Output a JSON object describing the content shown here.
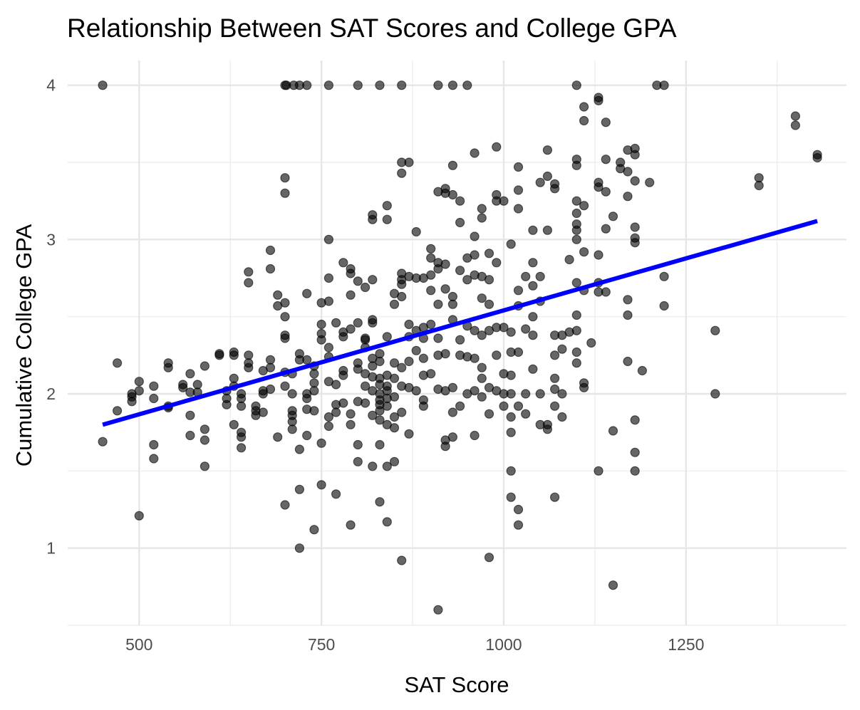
{
  "chart_data": {
    "type": "scatter",
    "title": "Relationship Between SAT Scores and College GPA",
    "xlabel": "SAT Score",
    "ylabel": "Cumulative College GPA",
    "xlim": [
      402,
      1470
    ],
    "ylim": [
      0.5,
      4.16
    ],
    "x_ticks": [
      500,
      750,
      1000,
      1250
    ],
    "y_ticks": [
      1,
      2,
      3,
      4
    ],
    "grid": true,
    "legend": "none",
    "point_color": "#000000",
    "point_opacity": 0.6,
    "trend_line": {
      "color": "#0000ff",
      "x": [
        450,
        1430
      ],
      "y": [
        1.8,
        3.12
      ]
    },
    "points": [
      [
        450,
        4.0
      ],
      [
        700,
        4.0
      ],
      [
        702,
        4.0
      ],
      [
        712,
        4.0
      ],
      [
        720,
        4.0
      ],
      [
        730,
        4.0
      ],
      [
        760,
        4.0
      ],
      [
        800,
        4.0
      ],
      [
        830,
        4.0
      ],
      [
        860,
        4.0
      ],
      [
        910,
        4.0
      ],
      [
        930,
        4.0
      ],
      [
        950,
        4.0
      ],
      [
        1100,
        4.0
      ],
      [
        1210,
        4.0
      ],
      [
        1220,
        4.0
      ],
      [
        450,
        1.69
      ],
      [
        470,
        2.2
      ],
      [
        470,
        1.89
      ],
      [
        490,
        1.95
      ],
      [
        490,
        1.98
      ],
      [
        490,
        2.0
      ],
      [
        500,
        2.08
      ],
      [
        500,
        2.02
      ],
      [
        500,
        1.21
      ],
      [
        520,
        2.05
      ],
      [
        520,
        1.97
      ],
      [
        520,
        1.67
      ],
      [
        520,
        1.58
      ],
      [
        540,
        2.2
      ],
      [
        540,
        2.17
      ],
      [
        540,
        1.92
      ],
      [
        540,
        1.91
      ],
      [
        560,
        2.06
      ],
      [
        560,
        2.04
      ],
      [
        570,
        2.13
      ],
      [
        570,
        2.01
      ],
      [
        570,
        1.86
      ],
      [
        570,
        1.73
      ],
      [
        580,
        2.06
      ],
      [
        580,
        2.01
      ],
      [
        590,
        2.18
      ],
      [
        590,
        1.77
      ],
      [
        590,
        1.7
      ],
      [
        590,
        1.53
      ],
      [
        610,
        2.26
      ],
      [
        610,
        2.25
      ],
      [
        620,
        2.02
      ],
      [
        620,
        1.97
      ],
      [
        620,
        1.93
      ],
      [
        630,
        2.27
      ],
      [
        630,
        2.25
      ],
      [
        630,
        2.1
      ],
      [
        630,
        2.05
      ],
      [
        630,
        1.8
      ],
      [
        640,
        2.0
      ],
      [
        640,
        1.97
      ],
      [
        640,
        1.92
      ],
      [
        640,
        1.75
      ],
      [
        640,
        1.72
      ],
      [
        640,
        1.65
      ],
      [
        650,
        2.79
      ],
      [
        650,
        2.72
      ],
      [
        650,
        2.25
      ],
      [
        650,
        2.2
      ],
      [
        650,
        2.17
      ],
      [
        660,
        1.92
      ],
      [
        660,
        1.89
      ],
      [
        660,
        1.86
      ],
      [
        670,
        2.15
      ],
      [
        670,
        2.02
      ],
      [
        670,
        2.0
      ],
      [
        670,
        1.88
      ],
      [
        680,
        2.93
      ],
      [
        680,
        2.81
      ],
      [
        680,
        2.22
      ],
      [
        680,
        2.17
      ],
      [
        680,
        2.03
      ],
      [
        690,
        2.64
      ],
      [
        690,
        2.57
      ],
      [
        690,
        1.72
      ],
      [
        700,
        3.4
      ],
      [
        700,
        3.3
      ],
      [
        700,
        2.59
      ],
      [
        700,
        2.5
      ],
      [
        700,
        2.38
      ],
      [
        700,
        2.36
      ],
      [
        700,
        2.14
      ],
      [
        700,
        2.05
      ],
      [
        700,
        1.28
      ],
      [
        710,
        2.13
      ],
      [
        710,
        2.0
      ],
      [
        710,
        1.89
      ],
      [
        710,
        1.86
      ],
      [
        710,
        1.82
      ],
      [
        710,
        1.77
      ],
      [
        720,
        2.26
      ],
      [
        720,
        2.22
      ],
      [
        720,
        1.64
      ],
      [
        720,
        1.38
      ],
      [
        720,
        1.0
      ],
      [
        730,
        2.65
      ],
      [
        730,
        2.22
      ],
      [
        730,
        2.0
      ],
      [
        730,
        1.97
      ],
      [
        730,
        1.9
      ],
      [
        730,
        1.73
      ],
      [
        740,
        2.18
      ],
      [
        740,
        2.13
      ],
      [
        740,
        2.07
      ],
      [
        740,
        2.02
      ],
      [
        740,
        1.89
      ],
      [
        740,
        1.12
      ],
      [
        750,
        2.59
      ],
      [
        750,
        2.45
      ],
      [
        750,
        2.39
      ],
      [
        750,
        2.35
      ],
      [
        750,
        1.68
      ],
      [
        750,
        1.41
      ],
      [
        760,
        3.0
      ],
      [
        760,
        2.75
      ],
      [
        760,
        2.6
      ],
      [
        760,
        2.3
      ],
      [
        760,
        2.24
      ],
      [
        760,
        2.08
      ],
      [
        760,
        1.85
      ],
      [
        760,
        1.79
      ],
      [
        770,
        2.46
      ],
      [
        770,
        2.06
      ],
      [
        770,
        1.93
      ],
      [
        770,
        1.88
      ],
      [
        770,
        1.35
      ],
      [
        780,
        2.85
      ],
      [
        780,
        2.4
      ],
      [
        780,
        2.37
      ],
      [
        780,
        2.15
      ],
      [
        780,
        2.12
      ],
      [
        780,
        1.94
      ],
      [
        790,
        2.81
      ],
      [
        790,
        2.78
      ],
      [
        790,
        2.64
      ],
      [
        790,
        2.42
      ],
      [
        790,
        1.87
      ],
      [
        790,
        1.8
      ],
      [
        790,
        1.15
      ],
      [
        800,
        2.73
      ],
      [
        800,
        2.46
      ],
      [
        800,
        2.2
      ],
      [
        800,
        2.16
      ],
      [
        800,
        1.95
      ],
      [
        800,
        1.67
      ],
      [
        800,
        1.56
      ],
      [
        810,
        2.69
      ],
      [
        810,
        2.36
      ],
      [
        810,
        2.35
      ],
      [
        810,
        2.3
      ],
      [
        810,
        2.13
      ],
      [
        810,
        2.05
      ],
      [
        810,
        1.94
      ],
      [
        820,
        3.16
      ],
      [
        820,
        3.13
      ],
      [
        820,
        2.74
      ],
      [
        820,
        2.48
      ],
      [
        820,
        2.46
      ],
      [
        820,
        2.23
      ],
      [
        820,
        2.18
      ],
      [
        820,
        2.11
      ],
      [
        820,
        2.02
      ],
      [
        820,
        1.86
      ],
      [
        820,
        1.53
      ],
      [
        830,
        2.26
      ],
      [
        830,
        2.21
      ],
      [
        830,
        2.1
      ],
      [
        830,
        2.06
      ],
      [
        830,
        2.0
      ],
      [
        830,
        1.96
      ],
      [
        830,
        1.93
      ],
      [
        830,
        1.89
      ],
      [
        830,
        1.83
      ],
      [
        830,
        1.67
      ],
      [
        830,
        1.3
      ],
      [
        840,
        3.22
      ],
      [
        840,
        3.13
      ],
      [
        840,
        2.37
      ],
      [
        840,
        2.12
      ],
      [
        840,
        2.05
      ],
      [
        840,
        2.02
      ],
      [
        840,
        1.97
      ],
      [
        840,
        1.92
      ],
      [
        840,
        1.8
      ],
      [
        840,
        1.53
      ],
      [
        840,
        1.17
      ],
      [
        850,
        2.65
      ],
      [
        850,
        2.58
      ],
      [
        850,
        2.2
      ],
      [
        850,
        2.1
      ],
      [
        850,
        1.98
      ],
      [
        850,
        1.85
      ],
      [
        850,
        1.78
      ],
      [
        850,
        1.56
      ],
      [
        860,
        3.5
      ],
      [
        860,
        3.43
      ],
      [
        860,
        2.78
      ],
      [
        860,
        2.74
      ],
      [
        860,
        2.71
      ],
      [
        860,
        2.63
      ],
      [
        860,
        2.17
      ],
      [
        860,
        2.05
      ],
      [
        860,
        1.88
      ],
      [
        860,
        0.92
      ],
      [
        870,
        3.5
      ],
      [
        870,
        2.76
      ],
      [
        870,
        2.45
      ],
      [
        870,
        2.37
      ],
      [
        870,
        2.21
      ],
      [
        870,
        2.04
      ],
      [
        870,
        1.74
      ],
      [
        880,
        3.05
      ],
      [
        880,
        2.75
      ],
      [
        880,
        2.41
      ],
      [
        880,
        2.28
      ],
      [
        880,
        2.02
      ],
      [
        890,
        2.75
      ],
      [
        890,
        2.43
      ],
      [
        890,
        2.36
      ],
      [
        890,
        2.23
      ],
      [
        890,
        2.12
      ],
      [
        890,
        1.96
      ],
      [
        890,
        1.92
      ],
      [
        900,
        2.94
      ],
      [
        900,
        2.88
      ],
      [
        900,
        2.77
      ],
      [
        900,
        2.67
      ],
      [
        900,
        2.45
      ],
      [
        900,
        2.13
      ],
      [
        910,
        3.31
      ],
      [
        910,
        2.85
      ],
      [
        910,
        2.81
      ],
      [
        910,
        2.58
      ],
      [
        910,
        2.36
      ],
      [
        910,
        2.25
      ],
      [
        910,
        2.03
      ],
      [
        910,
        0.6
      ],
      [
        920,
        3.33
      ],
      [
        920,
        3.3
      ],
      [
        920,
        2.84
      ],
      [
        920,
        2.68
      ],
      [
        920,
        2.26
      ],
      [
        920,
        2.02
      ],
      [
        920,
        1.7
      ],
      [
        920,
        1.66
      ],
      [
        930,
        3.48
      ],
      [
        930,
        3.29
      ],
      [
        930,
        2.63
      ],
      [
        930,
        2.58
      ],
      [
        930,
        2.48
      ],
      [
        930,
        2.04
      ],
      [
        930,
        1.88
      ],
      [
        930,
        1.72
      ],
      [
        940,
        3.25
      ],
      [
        940,
        3.11
      ],
      [
        940,
        2.8
      ],
      [
        940,
        2.35
      ],
      [
        940,
        2.25
      ],
      [
        940,
        1.92
      ],
      [
        950,
        2.88
      ],
      [
        950,
        2.74
      ],
      [
        950,
        2.44
      ],
      [
        950,
        2.24
      ],
      [
        950,
        2.0
      ],
      [
        960,
        3.56
      ],
      [
        960,
        3.02
      ],
      [
        960,
        2.9
      ],
      [
        960,
        2.77
      ],
      [
        960,
        2.41
      ],
      [
        960,
        2.23
      ],
      [
        960,
        2.02
      ],
      [
        960,
        1.73
      ],
      [
        970,
        3.2
      ],
      [
        970,
        3.14
      ],
      [
        970,
        2.76
      ],
      [
        970,
        2.62
      ],
      [
        970,
        2.38
      ],
      [
        970,
        2.17
      ],
      [
        970,
        2.1
      ],
      [
        970,
        1.98
      ],
      [
        980,
        2.91
      ],
      [
        980,
        2.74
      ],
      [
        980,
        2.58
      ],
      [
        980,
        2.41
      ],
      [
        980,
        2.04
      ],
      [
        980,
        1.87
      ],
      [
        980,
        0.94
      ],
      [
        990,
        3.6
      ],
      [
        990,
        3.29
      ],
      [
        990,
        3.25
      ],
      [
        990,
        2.85
      ],
      [
        990,
        2.43
      ],
      [
        990,
        2.25
      ],
      [
        990,
        2.02
      ],
      [
        1000,
        3.25
      ],
      [
        1000,
        2.43
      ],
      [
        1000,
        2.13
      ],
      [
        1000,
        2.0
      ],
      [
        1000,
        1.92
      ],
      [
        1010,
        2.97
      ],
      [
        1010,
        2.4
      ],
      [
        1010,
        2.27
      ],
      [
        1010,
        2.12
      ],
      [
        1010,
        2.0
      ],
      [
        1010,
        1.85
      ],
      [
        1010,
        1.75
      ],
      [
        1010,
        1.5
      ],
      [
        1010,
        1.33
      ],
      [
        1020,
        3.47
      ],
      [
        1020,
        3.32
      ],
      [
        1020,
        3.2
      ],
      [
        1020,
        2.67
      ],
      [
        1020,
        2.57
      ],
      [
        1020,
        2.27
      ],
      [
        1020,
        1.92
      ],
      [
        1020,
        1.25
      ],
      [
        1020,
        1.15
      ],
      [
        1030,
        2.76
      ],
      [
        1030,
        2.42
      ],
      [
        1030,
        2.0
      ],
      [
        1030,
        1.87
      ],
      [
        1040,
        3.06
      ],
      [
        1040,
        2.85
      ],
      [
        1040,
        2.7
      ],
      [
        1040,
        2.5
      ],
      [
        1040,
        2.38
      ],
      [
        1040,
        2.16
      ],
      [
        1050,
        3.37
      ],
      [
        1050,
        2.76
      ],
      [
        1050,
        2.6
      ],
      [
        1050,
        2.0
      ],
      [
        1050,
        1.8
      ],
      [
        1060,
        3.58
      ],
      [
        1060,
        3.41
      ],
      [
        1060,
        3.06
      ],
      [
        1060,
        1.8
      ],
      [
        1060,
        1.77
      ],
      [
        1070,
        3.36
      ],
      [
        1070,
        3.33
      ],
      [
        1070,
        2.38
      ],
      [
        1070,
        2.25
      ],
      [
        1070,
        2.1
      ],
      [
        1070,
        2.03
      ],
      [
        1070,
        1.92
      ],
      [
        1070,
        1.33
      ],
      [
        1080,
        2.38
      ],
      [
        1080,
        2.29
      ],
      [
        1080,
        2.0
      ],
      [
        1080,
        1.85
      ],
      [
        1090,
        2.87
      ],
      [
        1090,
        2.4
      ],
      [
        1100,
        3.52
      ],
      [
        1100,
        3.48
      ],
      [
        1100,
        3.25
      ],
      [
        1100,
        3.17
      ],
      [
        1100,
        3.1
      ],
      [
        1100,
        3.06
      ],
      [
        1100,
        3.0
      ],
      [
        1100,
        2.72
      ],
      [
        1100,
        2.51
      ],
      [
        1100,
        2.41
      ],
      [
        1100,
        2.27
      ],
      [
        1100,
        2.2
      ],
      [
        1110,
        3.86
      ],
      [
        1110,
        3.77
      ],
      [
        1110,
        3.22
      ],
      [
        1110,
        2.92
      ],
      [
        1110,
        2.67
      ],
      [
        1110,
        2.07
      ],
      [
        1110,
        2.04
      ],
      [
        1120,
        2.33
      ],
      [
        1130,
        3.92
      ],
      [
        1130,
        3.9
      ],
      [
        1130,
        3.37
      ],
      [
        1130,
        3.34
      ],
      [
        1130,
        2.9
      ],
      [
        1130,
        2.72
      ],
      [
        1130,
        2.66
      ],
      [
        1130,
        1.5
      ],
      [
        1140,
        3.76
      ],
      [
        1140,
        3.52
      ],
      [
        1140,
        3.31
      ],
      [
        1140,
        3.07
      ],
      [
        1140,
        2.66
      ],
      [
        1150,
        3.15
      ],
      [
        1150,
        1.76
      ],
      [
        1150,
        0.76
      ],
      [
        1160,
        3.5
      ],
      [
        1160,
        3.46
      ],
      [
        1170,
        3.58
      ],
      [
        1170,
        3.44
      ],
      [
        1170,
        3.28
      ],
      [
        1170,
        2.61
      ],
      [
        1170,
        2.51
      ],
      [
        1170,
        2.21
      ],
      [
        1180,
        3.59
      ],
      [
        1180,
        3.55
      ],
      [
        1180,
        3.38
      ],
      [
        1180,
        3.08
      ],
      [
        1180,
        3.01
      ],
      [
        1180,
        2.98
      ],
      [
        1180,
        1.83
      ],
      [
        1180,
        1.62
      ],
      [
        1180,
        1.5
      ],
      [
        1190,
        2.15
      ],
      [
        1200,
        3.37
      ],
      [
        1220,
        2.76
      ],
      [
        1220,
        2.57
      ],
      [
        1290,
        2.41
      ],
      [
        1290,
        2.0
      ],
      [
        1350,
        3.4
      ],
      [
        1350,
        3.35
      ],
      [
        1400,
        3.8
      ],
      [
        1400,
        3.74
      ],
      [
        1430,
        3.55
      ],
      [
        1430,
        3.53
      ]
    ]
  }
}
